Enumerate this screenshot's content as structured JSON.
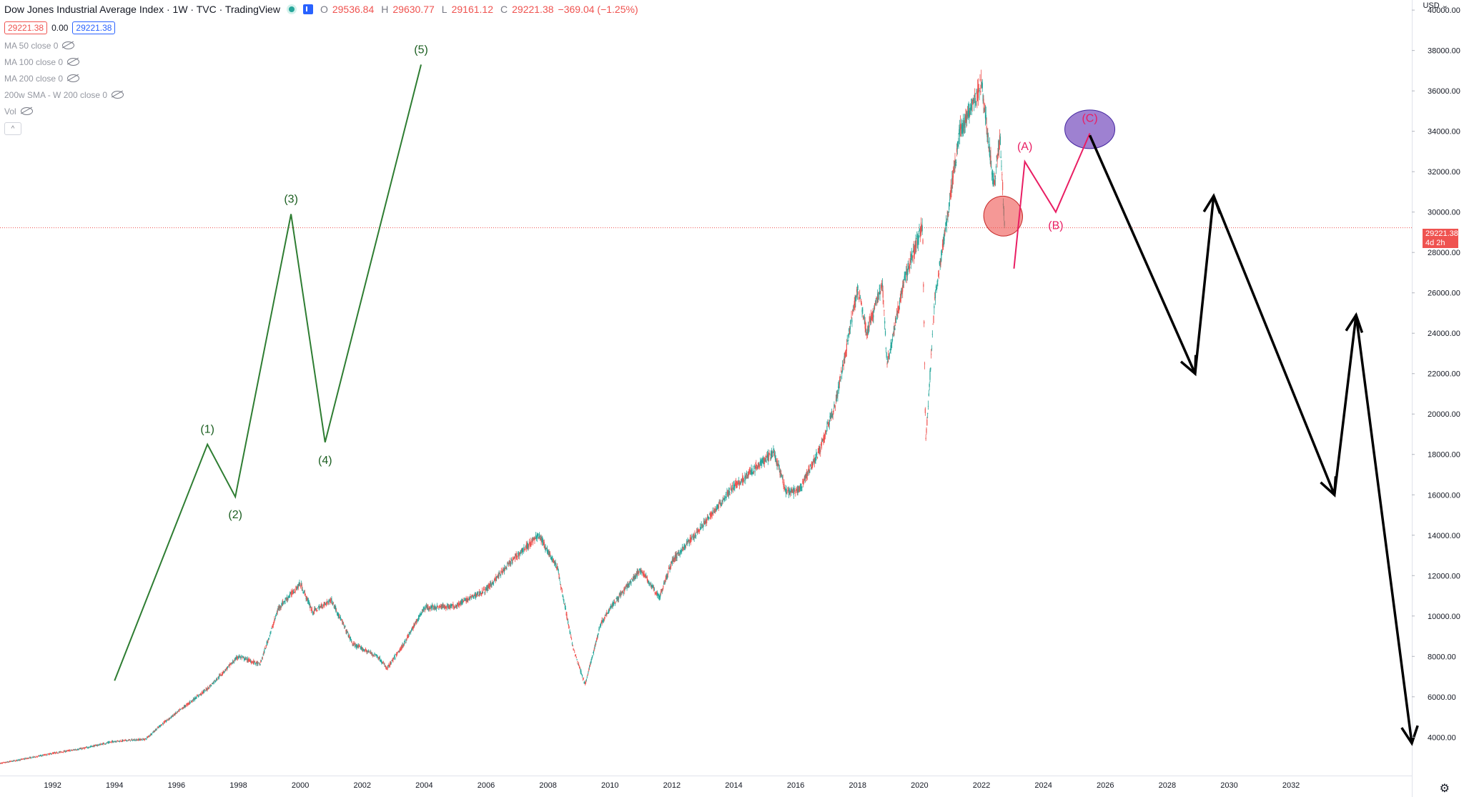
{
  "legend": {
    "title": "Dow Jones Industrial Average Index · 1W · TVC · TradingView",
    "ohlc": {
      "o_label": "O",
      "o": "29536.84",
      "h_label": "H",
      "h": "29630.77",
      "l_label": "L",
      "l": "29161.12",
      "c_label": "C",
      "c": "29221.38",
      "change": "−369.04 (−1.25%)"
    },
    "bid": "29221.38",
    "spread": "0.00",
    "ask": "29221.38",
    "indicators": [
      "MA 50 close 0",
      "MA 100 close 0",
      "MA 200 close 0",
      "200w SMA - W 200 close 0",
      "Vol"
    ],
    "collapse_glyph": "^"
  },
  "price_axis": {
    "currency": "USD",
    "last_price": "29221.38",
    "countdown": "4d 2h"
  },
  "colors": {
    "up": "#26a69a",
    "down": "#ef5350",
    "impulse": "#2e7d32",
    "correction": "#e91e63",
    "projection": "#000000",
    "purple": "#7e57c2",
    "pink": "#ef5350"
  },
  "chart_data": {
    "type": "line",
    "title": "Dow Jones Industrial Average Index · 1W · TVC · TradingView",
    "xlabel": "",
    "ylabel": "USD",
    "xlim": [
      1990.3,
      2035.9
    ],
    "ylim": [
      2100,
      40500
    ],
    "x_ticks": [
      1992,
      1994,
      1996,
      1998,
      2000,
      2002,
      2004,
      2006,
      2008,
      2010,
      2012,
      2014,
      2016,
      2018,
      2020,
      2022,
      2024,
      2026,
      2028,
      2030,
      2032
    ],
    "y_ticks": [
      4000,
      6000,
      8000,
      10000,
      12000,
      14000,
      16000,
      18000,
      20000,
      22000,
      24000,
      26000,
      28000,
      30000,
      32000,
      34000,
      36000,
      38000,
      40000
    ],
    "series": [
      {
        "values": [
          [
            1990.3,
            2700
          ],
          [
            1991,
            2900
          ],
          [
            1992,
            3200
          ],
          [
            1993,
            3450
          ],
          [
            1994,
            3800
          ],
          [
            1995,
            3900
          ],
          [
            1995.5,
            4600
          ],
          [
            1996,
            5200
          ],
          [
            1997,
            6400
          ],
          [
            1998,
            8000
          ],
          [
            1998.7,
            7600
          ],
          [
            1999.3,
            10400
          ],
          [
            2000,
            11600
          ],
          [
            2000.4,
            10200
          ],
          [
            2001,
            10800
          ],
          [
            2001.7,
            8600
          ],
          [
            2002.5,
            8000
          ],
          [
            2002.8,
            7400
          ],
          [
            2003.3,
            8500
          ],
          [
            2004,
            10400
          ],
          [
            2005,
            10500
          ],
          [
            2006,
            11300
          ],
          [
            2007,
            13000
          ],
          [
            2007.7,
            14000
          ],
          [
            2008.3,
            12400
          ],
          [
            2008.8,
            8500
          ],
          [
            2009.2,
            6600
          ],
          [
            2009.7,
            9600
          ],
          [
            2010,
            10400
          ],
          [
            2011,
            12300
          ],
          [
            2011.6,
            10900
          ],
          [
            2012,
            12700
          ],
          [
            2013,
            14500
          ],
          [
            2014,
            16400
          ],
          [
            2015.3,
            18100
          ],
          [
            2015.7,
            16100
          ],
          [
            2016.1,
            16200
          ],
          [
            2016.8,
            18300
          ],
          [
            2017.3,
            20600
          ],
          [
            2018,
            26200
          ],
          [
            2018.3,
            24000
          ],
          [
            2018.8,
            26500
          ],
          [
            2018.95,
            22400
          ],
          [
            2019.5,
            26600
          ],
          [
            2020.1,
            29400
          ],
          [
            2020.2,
            18600
          ],
          [
            2020.5,
            25800
          ],
          [
            2020.9,
            29800
          ],
          [
            2021.3,
            34000
          ],
          [
            2021.7,
            35200
          ],
          [
            2022,
            36400
          ],
          [
            2022.4,
            31300
          ],
          [
            2022.6,
            33800
          ],
          [
            2022.75,
            29200
          ]
        ]
      }
    ],
    "wave_labels": {
      "impulse": [
        "(1)",
        "(2)",
        "(3)",
        "(4)",
        "(5)"
      ],
      "correction": [
        "(A)",
        "(B)",
        "(C)"
      ]
    },
    "impulse_path": [
      [
        1994,
        6800
      ],
      [
        1997,
        18500
      ],
      [
        1997.9,
        15900
      ],
      [
        1999.7,
        29900
      ],
      [
        2000.8,
        18600
      ],
      [
        2003.9,
        37300
      ]
    ],
    "correction_path": [
      [
        2023.05,
        27200
      ],
      [
        2023.4,
        32500
      ],
      [
        2024.4,
        30000
      ],
      [
        2025.5,
        33900
      ]
    ],
    "projection_path": [
      [
        2025.5,
        33800
      ],
      [
        2028.9,
        22000
      ],
      [
        2029.5,
        30800
      ],
      [
        2033.4,
        16000
      ],
      [
        2034.1,
        24900
      ],
      [
        2035.9,
        3700
      ]
    ],
    "annotations": [
      {
        "type": "ellipse",
        "center": [
          2022.7,
          29800
        ]
      },
      {
        "type": "ellipse",
        "center": [
          2025.5,
          34100
        ]
      }
    ]
  }
}
